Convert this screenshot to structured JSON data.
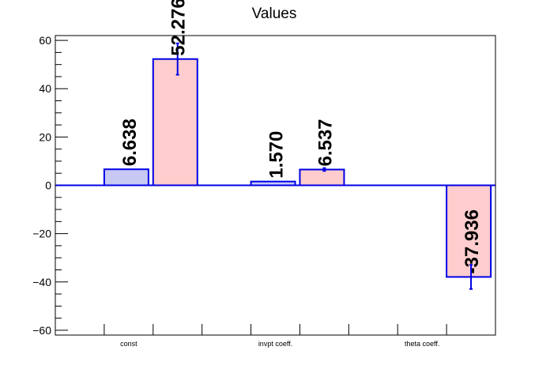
{
  "chart_data": {
    "type": "bar",
    "title": "Values",
    "categories": [
      "const",
      "invpt coeff.",
      "theta coeff."
    ],
    "ylim": [
      -62,
      62
    ],
    "yticks": [
      -60,
      -40,
      -20,
      0,
      20,
      40,
      60
    ],
    "grid": false,
    "series": [
      {
        "fill": "#c8c8f4",
        "stroke": "#0000e6",
        "values": [
          6.638,
          1.57,
          null
        ],
        "labels": [
          "6.638",
          "1.570",
          ""
        ],
        "errors": [
          null,
          null,
          null
        ]
      },
      {
        "fill": "#ffcdcd",
        "stroke": "#0000e6",
        "values": [
          52.276,
          6.537,
          -37.936
        ],
        "labels": [
          "52.276",
          "6.537",
          "-37.936"
        ],
        "errors": [
          6.5,
          0.6,
          5.0
        ]
      }
    ]
  }
}
